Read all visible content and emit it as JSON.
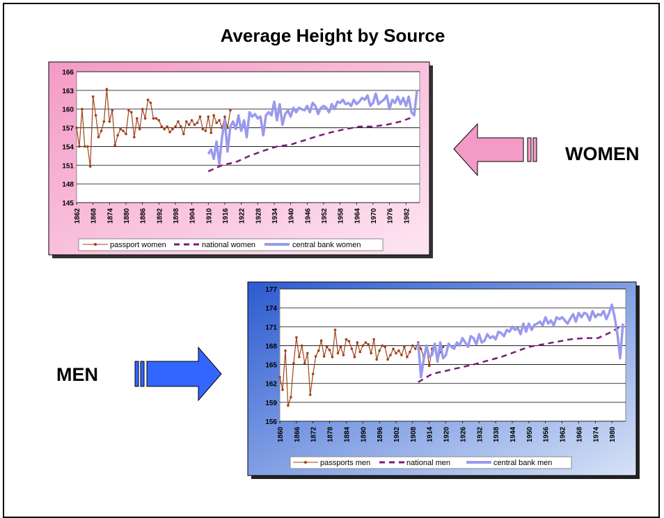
{
  "slide": {
    "title": "Average Height by Source",
    "women_label": "WOMEN",
    "men_label": "MEN",
    "colors": {
      "women_bg": "#f7b8d6",
      "men_bg": "#4a74d8",
      "passport": "#a0421a",
      "national": "#7a1a7a",
      "central_bank": "#9999ee",
      "women_arrow": "#f49ac6",
      "men_arrow": "#3366ff"
    }
  },
  "chart_data": [
    {
      "type": "line",
      "ylim": [
        145,
        166
      ],
      "yticks": [
        "145",
        "148",
        "151",
        "154",
        "157",
        "160",
        "163",
        "166"
      ],
      "xlim": [
        1862,
        1987
      ],
      "xticks": [
        "1862",
        "1868",
        "1874",
        "1880",
        "1886",
        "1892",
        "1898",
        "1904",
        "1910",
        "1916",
        "1922",
        "1928",
        "1934",
        "1940",
        "1946",
        "1952",
        "1958",
        "1964",
        "1970",
        "1976",
        "1982"
      ],
      "series": [
        {
          "name": "passport women",
          "style": "marker",
          "x": [
            1862,
            1863,
            1864,
            1865,
            1866,
            1867,
            1868,
            1869,
            1870,
            1871,
            1872,
            1873,
            1874,
            1875,
            1876,
            1877,
            1878,
            1879,
            1880,
            1881,
            1882,
            1883,
            1884,
            1885,
            1886,
            1887,
            1888,
            1889,
            1890,
            1891,
            1892,
            1893,
            1894,
            1895,
            1896,
            1897,
            1898,
            1899,
            1900,
            1901,
            1902,
            1903,
            1904,
            1905,
            1906,
            1907,
            1908,
            1909,
            1910,
            1911,
            1912,
            1913,
            1914,
            1915,
            1916,
            1917,
            1918
          ],
          "values": [
            157,
            154,
            160,
            154,
            154,
            150.8,
            162,
            159,
            155.5,
            156.5,
            158,
            163.2,
            158,
            159.8,
            154.2,
            155.8,
            156.8,
            156.5,
            156,
            159.8,
            159.5,
            155.5,
            158.5,
            156.8,
            160,
            158.5,
            161.5,
            161,
            158.5,
            158.5,
            158.2,
            157.2,
            156.8,
            157.2,
            156.3,
            156.8,
            157.2,
            158,
            157.2,
            156,
            158,
            157.5,
            158.2,
            157.5,
            157.8,
            158.8,
            156.8,
            156.5,
            158.8,
            156.2,
            159,
            157.8,
            158.2,
            157,
            158.8,
            157,
            159.8
          ]
        },
        {
          "name": "national women",
          "style": "dashed",
          "x": [
            1910,
            1915,
            1920,
            1925,
            1930,
            1935,
            1940,
            1945,
            1950,
            1955,
            1960,
            1965,
            1970,
            1975,
            1980,
            1985
          ],
          "values": [
            150,
            151,
            151.5,
            152.5,
            153.3,
            154,
            154.3,
            155,
            155.7,
            156.3,
            156.8,
            157.2,
            157.2,
            157.5,
            158,
            158.8
          ]
        },
        {
          "name": "central bank women",
          "style": "thick",
          "x": [
            1910,
            1911,
            1912,
            1913,
            1914,
            1915,
            1916,
            1917,
            1918,
            1919,
            1920,
            1921,
            1922,
            1923,
            1924,
            1925,
            1926,
            1927,
            1928,
            1929,
            1930,
            1931,
            1932,
            1933,
            1934,
            1935,
            1936,
            1937,
            1938,
            1939,
            1940,
            1941,
            1942,
            1943,
            1944,
            1945,
            1946,
            1947,
            1948,
            1949,
            1950,
            1951,
            1952,
            1953,
            1954,
            1955,
            1956,
            1957,
            1958,
            1959,
            1960,
            1961,
            1962,
            1963,
            1964,
            1965,
            1966,
            1967,
            1968,
            1969,
            1970,
            1971,
            1972,
            1973,
            1974,
            1975,
            1976,
            1977,
            1978,
            1979,
            1980,
            1981,
            1982,
            1983,
            1984,
            1985,
            1986
          ],
          "values": [
            152.8,
            153.5,
            152,
            154.8,
            151.2,
            155.5,
            158.2,
            153.2,
            157.2,
            158,
            156.8,
            159,
            156.5,
            158.2,
            155.5,
            159.5,
            158.8,
            159.2,
            158.5,
            158.8,
            155.8,
            159,
            159.5,
            159,
            161.2,
            158.2,
            160.8,
            157.5,
            159.2,
            159.8,
            158.8,
            160.2,
            159.5,
            160.2,
            160,
            159.8,
            160.5,
            159.5,
            161,
            160.5,
            159.2,
            160.2,
            160.5,
            160.2,
            159.5,
            160.8,
            160,
            161.2,
            161,
            161.5,
            160.8,
            161,
            160.5,
            161.5,
            160.8,
            161.2,
            161.8,
            161.5,
            162.2,
            160.5,
            161,
            162.5,
            160.8,
            161.2,
            161.5,
            162.2,
            160,
            161.5,
            161,
            162,
            160.8,
            161.8,
            160.5,
            162,
            159.5,
            159,
            163
          ]
        }
      ]
    },
    {
      "type": "line",
      "ylim": [
        156,
        177
      ],
      "yticks": [
        "156",
        "159",
        "162",
        "165",
        "168",
        "171",
        "174",
        "177"
      ],
      "xlim": [
        1860,
        1985
      ],
      "xticks": [
        "1860",
        "1866",
        "1872",
        "1878",
        "1884",
        "1890",
        "1896",
        "1902",
        "1908",
        "1914",
        "1920",
        "1926",
        "1932",
        "1938",
        "1944",
        "1950",
        "1956",
        "1962",
        "1968",
        "1974",
        "1980"
      ],
      "series": [
        {
          "name": "passports men",
          "style": "marker",
          "x": [
            1860,
            1861,
            1862,
            1863,
            1864,
            1865,
            1866,
            1867,
            1868,
            1869,
            1870,
            1871,
            1872,
            1873,
            1874,
            1875,
            1876,
            1877,
            1878,
            1879,
            1880,
            1881,
            1882,
            1883,
            1884,
            1885,
            1886,
            1887,
            1888,
            1889,
            1890,
            1891,
            1892,
            1893,
            1894,
            1895,
            1896,
            1897,
            1898,
            1899,
            1900,
            1901,
            1902,
            1903,
            1904,
            1905,
            1906,
            1907,
            1908,
            1909,
            1910,
            1911,
            1912,
            1913,
            1914,
            1915,
            1916,
            1917,
            1918,
            1919
          ],
          "values": [
            163,
            161,
            167.2,
            158.5,
            159.8,
            165.2,
            169.3,
            166.2,
            168,
            165.2,
            166.8,
            160.2,
            163.5,
            166.3,
            167.2,
            168.8,
            166.3,
            167.8,
            167.3,
            166.2,
            170.5,
            166.8,
            167.8,
            166.5,
            169,
            168.7,
            167.5,
            166.2,
            168.5,
            167,
            168,
            168.5,
            168.2,
            166.8,
            169,
            165.8,
            167.2,
            168,
            167.8,
            165.8,
            166.5,
            167.5,
            166.8,
            167.2,
            166.5,
            167.8,
            166.2,
            167,
            168,
            167.5,
            168.5,
            167.5,
            166.2,
            167.8,
            164.8,
            167.5,
            168.2,
            165.5,
            167,
            167.8
          ]
        },
        {
          "name": "national men",
          "style": "dashed",
          "x": [
            1910,
            1915,
            1920,
            1925,
            1930,
            1935,
            1940,
            1945,
            1950,
            1955,
            1960,
            1965,
            1970,
            1975,
            1980,
            1983
          ],
          "values": [
            162.2,
            163.5,
            164,
            164.5,
            165,
            165.6,
            166.2,
            167,
            167.8,
            168.2,
            168.6,
            169,
            169.2,
            169.2,
            170.2,
            171
          ]
        },
        {
          "name": "central bank men",
          "style": "thick",
          "x": [
            1910,
            1911,
            1912,
            1913,
            1914,
            1915,
            1916,
            1917,
            1918,
            1919,
            1920,
            1921,
            1922,
            1923,
            1924,
            1925,
            1926,
            1927,
            1928,
            1929,
            1930,
            1931,
            1932,
            1933,
            1934,
            1935,
            1936,
            1937,
            1938,
            1939,
            1940,
            1941,
            1942,
            1943,
            1944,
            1945,
            1946,
            1947,
            1948,
            1949,
            1950,
            1951,
            1952,
            1953,
            1954,
            1955,
            1956,
            1957,
            1958,
            1959,
            1960,
            1961,
            1962,
            1963,
            1964,
            1965,
            1966,
            1967,
            1968,
            1969,
            1970,
            1971,
            1972,
            1973,
            1974,
            1975,
            1976,
            1977,
            1978,
            1979,
            1980,
            1981,
            1982,
            1983,
            1984
          ],
          "values": [
            168.5,
            163,
            165.8,
            168,
            166.2,
            166.5,
            168.3,
            165.5,
            168.5,
            166,
            166.5,
            168.3,
            167.8,
            167.5,
            168.5,
            168,
            169.2,
            168.5,
            167.8,
            169.5,
            169.2,
            168.2,
            169.8,
            168.5,
            168.8,
            169.8,
            169.2,
            169.5,
            169,
            170.2,
            170,
            169.5,
            170.5,
            170.2,
            171,
            170.5,
            170.8,
            169.8,
            171.5,
            170.2,
            171.5,
            170.5,
            171.3,
            171.5,
            171.8,
            171.2,
            172.5,
            171.5,
            172,
            171.2,
            172.5,
            172.2,
            172.5,
            172,
            171.5,
            172.3,
            173,
            171.8,
            173.2,
            172.5,
            173.2,
            173,
            172,
            173.5,
            172.5,
            173,
            172.8,
            173.5,
            172.2,
            173.2,
            174.5,
            172.5,
            169.8,
            166,
            171.5
          ]
        }
      ]
    }
  ]
}
